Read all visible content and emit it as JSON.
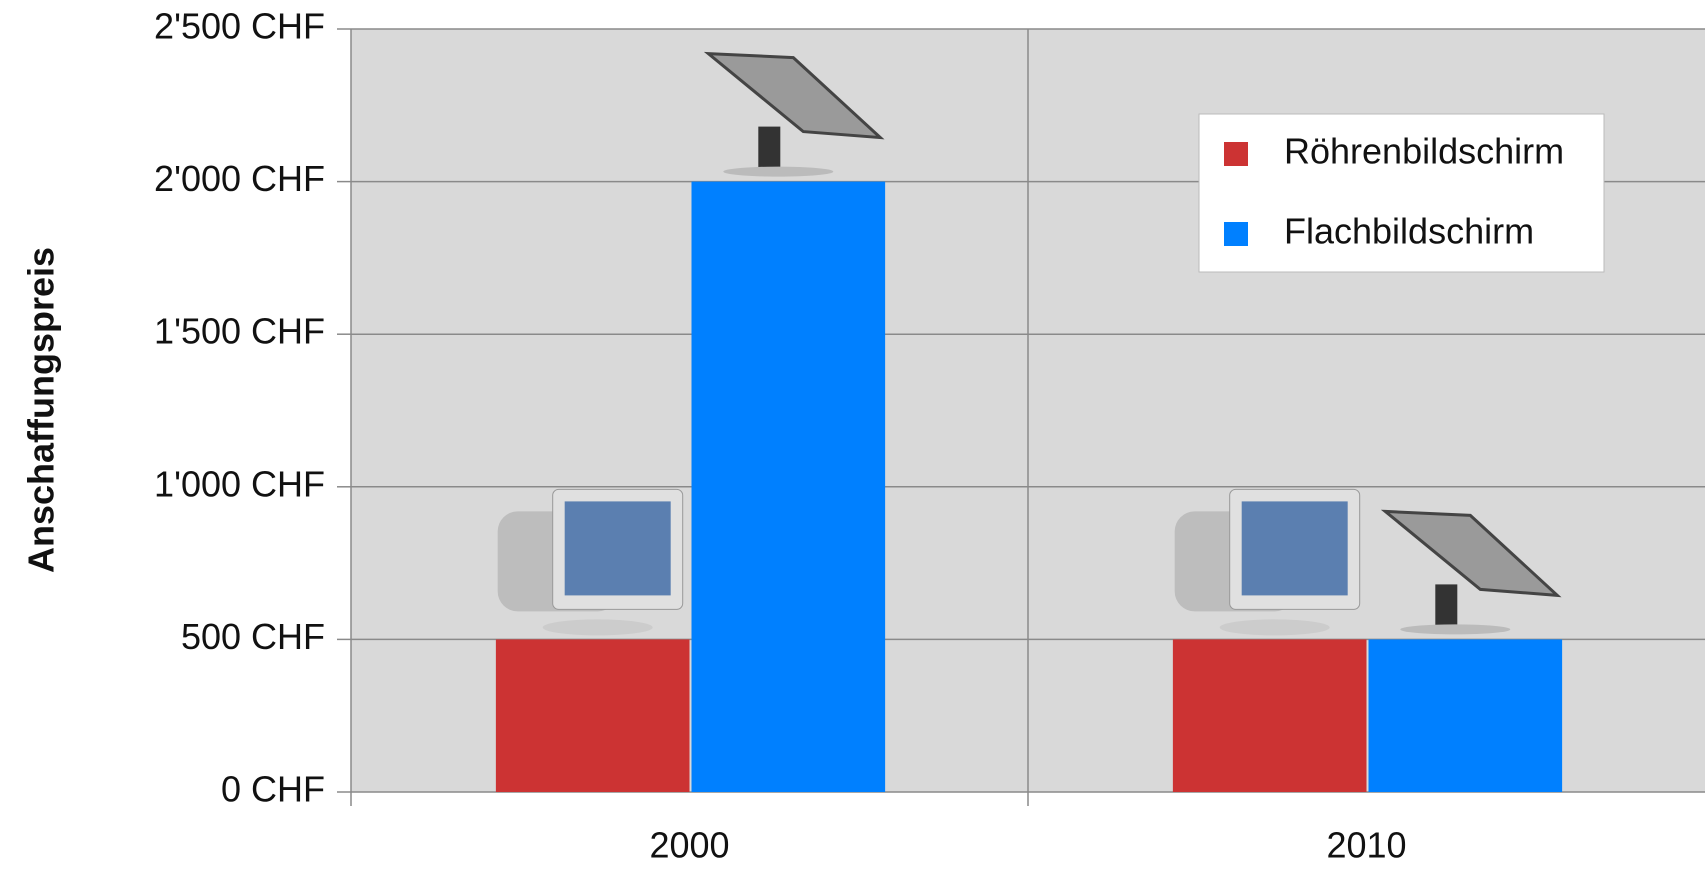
{
  "chart_data": {
    "type": "bar",
    "y_label": "Anschaffungspreis",
    "categories": [
      "2000",
      "2010"
    ],
    "series": [
      {
        "name": "Röhrenbildschirm",
        "color": "#cc3333",
        "values": [
          500,
          500
        ]
      },
      {
        "name": "Flachbildschirm",
        "color": "#0080ff",
        "values": [
          2000,
          500
        ]
      }
    ],
    "ylim": [
      0,
      2500
    ],
    "yticks": [
      {
        "value": 0,
        "label": "0 CHF"
      },
      {
        "value": 500,
        "label": "500 CHF"
      },
      {
        "value": 1000,
        "label": "1'000 CHF"
      },
      {
        "value": 1500,
        "label": "1'500 CHF"
      },
      {
        "value": 2000,
        "label": "2'000 CHF"
      },
      {
        "value": 2500,
        "label": "2'500 CHF"
      }
    ],
    "grid": true,
    "legend_position": "top-right"
  }
}
